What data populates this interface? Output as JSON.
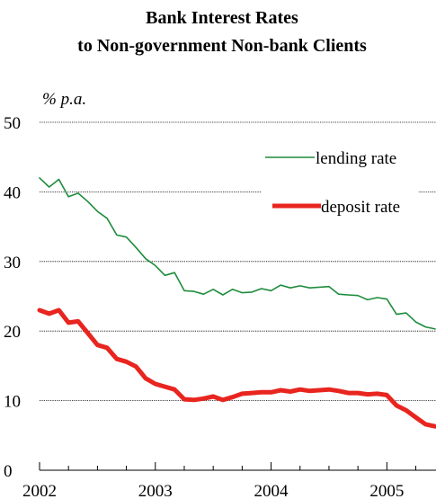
{
  "chart_data": {
    "type": "line",
    "title": "Bank Interest Rates",
    "subtitle": "to Non-government Non-bank Clients",
    "ylabel": "% p.a.",
    "xlabel": "",
    "ylim": [
      0,
      50
    ],
    "xlim": [
      "2002-01",
      "2005-06"
    ],
    "yticks": [
      "0",
      "10",
      "20",
      "30",
      "40",
      "50"
    ],
    "xticks": [
      "2002",
      "2003",
      "2004",
      "2005"
    ],
    "grid": true,
    "legend": "top-right",
    "series": [
      {
        "name": "lending rate",
        "color": "#1e8c3c",
        "x": [
          "2002-01",
          "2002-02",
          "2002-03",
          "2002-04",
          "2002-05",
          "2002-06",
          "2002-07",
          "2002-08",
          "2002-09",
          "2002-10",
          "2002-11",
          "2002-12",
          "2003-01",
          "2003-02",
          "2003-03",
          "2003-04",
          "2003-05",
          "2003-06",
          "2003-07",
          "2003-08",
          "2003-09",
          "2003-10",
          "2003-11",
          "2003-12",
          "2004-01",
          "2004-02",
          "2004-03",
          "2004-04",
          "2004-05",
          "2004-06",
          "2004-07",
          "2004-08",
          "2004-09",
          "2004-10",
          "2004-11",
          "2004-12",
          "2005-01",
          "2005-02",
          "2005-03",
          "2005-04",
          "2005-05",
          "2005-06"
        ],
        "values": [
          42.0,
          40.7,
          41.8,
          39.3,
          39.8,
          38.6,
          37.2,
          36.2,
          33.8,
          33.5,
          32.0,
          30.4,
          29.4,
          28.0,
          28.4,
          25.8,
          25.7,
          25.3,
          26.0,
          25.2,
          26.0,
          25.5,
          25.6,
          26.1,
          25.8,
          26.6,
          26.2,
          26.5,
          26.2,
          26.3,
          26.4,
          25.3,
          25.2,
          25.1,
          24.5,
          24.8,
          24.6,
          22.4,
          22.6,
          21.3,
          20.6,
          20.3
        ]
      },
      {
        "name": "deposit rate",
        "color": "#e8251f",
        "x": [
          "2002-01",
          "2002-02",
          "2002-03",
          "2002-04",
          "2002-05",
          "2002-06",
          "2002-07",
          "2002-08",
          "2002-09",
          "2002-10",
          "2002-11",
          "2002-12",
          "2003-01",
          "2003-02",
          "2003-03",
          "2003-04",
          "2003-05",
          "2003-06",
          "2003-07",
          "2003-08",
          "2003-09",
          "2003-10",
          "2003-11",
          "2003-12",
          "2004-01",
          "2004-02",
          "2004-03",
          "2004-04",
          "2004-05",
          "2004-06",
          "2004-07",
          "2004-08",
          "2004-09",
          "2004-10",
          "2004-11",
          "2004-12",
          "2005-01",
          "2005-02",
          "2005-03",
          "2005-04",
          "2005-05",
          "2005-06"
        ],
        "values": [
          23.0,
          22.5,
          23.0,
          21.2,
          21.4,
          19.7,
          18.0,
          17.6,
          16.0,
          15.6,
          14.9,
          13.2,
          12.4,
          12.0,
          11.6,
          10.2,
          10.1,
          10.3,
          10.6,
          10.1,
          10.5,
          11.0,
          11.1,
          11.2,
          11.2,
          11.5,
          11.3,
          11.6,
          11.4,
          11.5,
          11.6,
          11.4,
          11.1,
          11.1,
          10.9,
          11.0,
          10.8,
          9.3,
          8.6,
          7.6,
          6.6,
          6.3
        ]
      }
    ]
  }
}
